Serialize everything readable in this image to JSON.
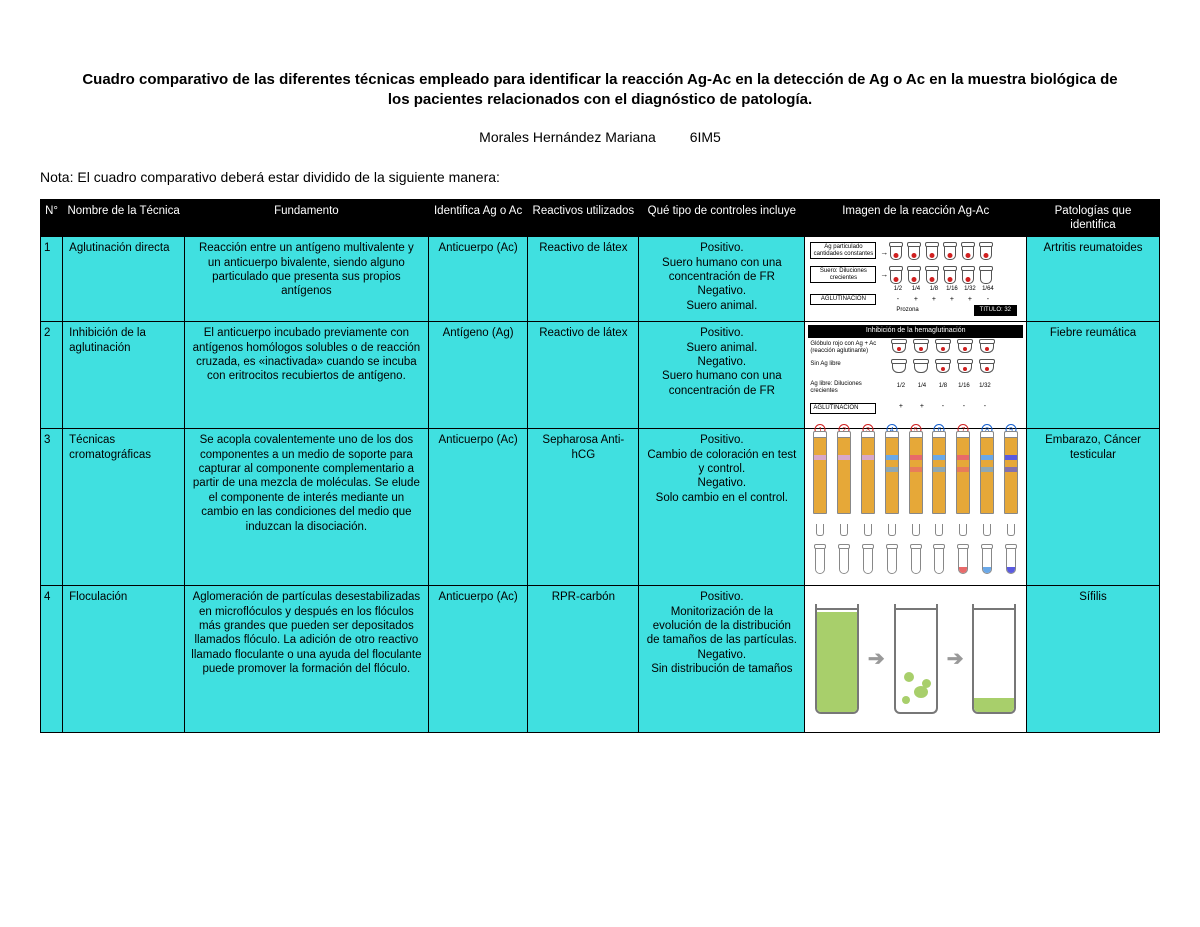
{
  "title": "Cuadro comparativo de las diferentes técnicas empleado para identificar la reacción Ag-Ac en la detección de Ag o Ac en la muestra biológica de los pacientes relacionados con el diagnóstico de patología.",
  "author_name": "Morales Hernández Mariana",
  "author_group": "6IM5",
  "note": "Nota: El cuadro comparativo deberá estar dividido de la siguiente manera:",
  "columns": {
    "num": "N°",
    "name": "Nombre de la Técnica",
    "fund": "Fundamento",
    "ident": "Identifica Ag o Ac",
    "react": "Reactivos utilizados",
    "ctrl": "Qué tipo de controles incluye",
    "img": "Imagen de la reacción Ag-Ac",
    "path": "Patologías que identifica"
  },
  "rows": [
    {
      "n": "1",
      "name": "Aglutinación directa",
      "fund": "Reacción entre un antígeno multivalente y un anticuerpo bivalente, siendo alguno particulado que presenta sus propios antígenos",
      "ident": "Anticuerpo (Ac)",
      "react": "Reactivo de látex",
      "ctrl": "Positivo.\nSuero humano con una concentración de FR\nNegativo.\nSuero animal.",
      "path": "Artritis reumatoides"
    },
    {
      "n": "2",
      "name": "Inhibición de la aglutinación",
      "fund": "El anticuerpo incubado previamente con antígenos homólogos solubles o de reacción cruzada, es «inactivada» cuando se incuba con eritrocitos recubiertos de antígeno.",
      "ident": "Antígeno (Ag)",
      "react": "Reactivo de látex",
      "ctrl": "Positivo.\nSuero animal.\nNegativo.\nSuero humano con una concentración de FR",
      "path": "Fiebre reumática"
    },
    {
      "n": "3",
      "name": "Técnicas cromatográficas",
      "fund": "Se acopla covalentemente uno de los dos componentes a un medio de soporte para capturar al componente complementario a partir de una mezcla de moléculas. Se elude el componente de interés mediante un cambio en las condiciones del medio que induzcan la disociación.",
      "ident": "Anticuerpo (Ac)",
      "react": "Sepharosa Anti-hCG",
      "ctrl": "Positivo.\nCambio de coloración en test y control.\nNegativo.\nSolo cambio en el control.",
      "path": "Embarazo, Cáncer testicular"
    },
    {
      "n": "4",
      "name": "Floculación",
      "fund": "Aglomeración de partículas desestabilizadas en microflóculos y después en los flóculos más grandes que pueden ser depositados llamados flóculo. La adición de otro reactivo llamado floculante o una ayuda del floculante puede promover la formación del flóculo.",
      "ident": "Anticuerpo (Ac)",
      "react": "RPR-carbón",
      "ctrl": "Positivo.\nMonitorización de la evolución de la distribución de tamaños de las partículas.\nNegativo.\nSin distribución de tamaños",
      "path": "Sífilis"
    }
  ],
  "diag1": {
    "box1": "Ag particulado cantidades constantes",
    "box2": "Suero: Diluciones crecientes",
    "box3": "AGLUTINACION",
    "dilutions": [
      "1/2",
      "1/4",
      "1/8",
      "1/16",
      "1/32",
      "1/64"
    ],
    "signs": [
      "-",
      "+",
      "+",
      "+",
      "+",
      "-"
    ],
    "prozona": "Prozona",
    "titulo": "TITULO: 32"
  },
  "diag2": {
    "banner": "Inhibición de la hemaglutinación",
    "lbl1": "Glóbulo rojo con Ag + Ac (reacción aglutinante)",
    "lbl2": "Sin Ag libre",
    "lbl3": "Ag libre: Diluciones crecientes",
    "lbl4": "AGLUTINACION",
    "dilutions": [
      "1/2",
      "1/4",
      "1/8",
      "1/16",
      "1/32"
    ],
    "signs": [
      "+",
      "+",
      "-",
      "-",
      "-"
    ]
  },
  "diag3": {
    "strip_numbers": [
      "1",
      "2",
      "3",
      "4",
      "5",
      "6",
      "7",
      "8",
      "9"
    ],
    "strip_num_colors": [
      "#d02020",
      "#d02020",
      "#d02020",
      "#1560d0",
      "#d02020",
      "#1560d0",
      "#d02020",
      "#1560d0",
      "#1560d0"
    ],
    "band_colors": [
      "#d8a8c8",
      "#d8a8c8",
      "#d8a8c8",
      "#6aa8e8",
      "#e86a6a",
      "#6aa8e8",
      "#e86a6a",
      "#6aa8e8",
      "#5a5ae0"
    ],
    "fluid_colors": [
      "#ffffff",
      "#ffffff",
      "#ffffff",
      "#ffffff",
      "#ffffff",
      "#ffffff",
      "#e86a6a",
      "#6aa8e8",
      "#5a5ae0"
    ]
  },
  "colors": {
    "cell_bg": "#40e0e0",
    "header_bg": "#000000",
    "header_fg": "#ffffff",
    "floc_green": "#a8cf6b"
  }
}
